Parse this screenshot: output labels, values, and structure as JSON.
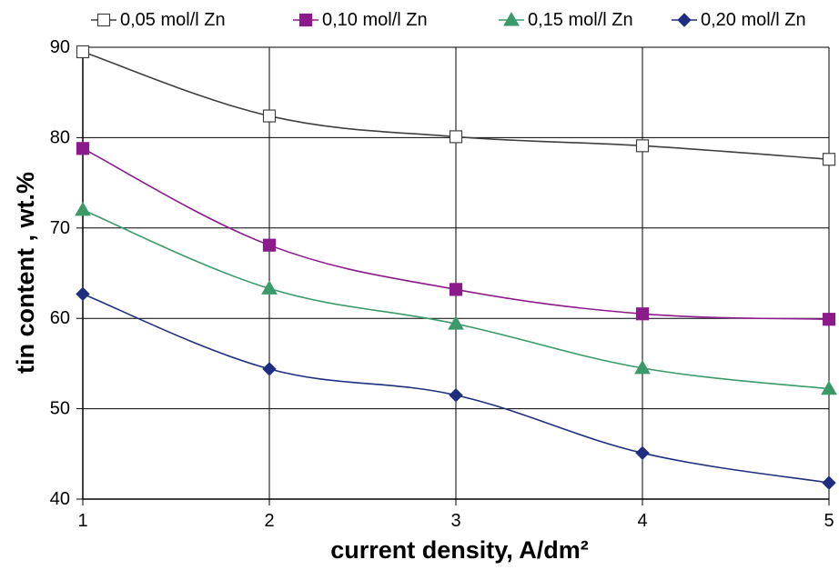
{
  "chart_data": {
    "type": "line",
    "title": "",
    "xlabel": "current density, A/dm²",
    "ylabel": "tin content , wt.%",
    "x": [
      1,
      2,
      3,
      4,
      5
    ],
    "xlim": [
      1,
      5
    ],
    "ylim": [
      40,
      90
    ],
    "xticks": [
      "1",
      "2",
      "3",
      "4",
      "5"
    ],
    "yticks": [
      "40",
      "50",
      "60",
      "70",
      "80",
      "90"
    ],
    "grid": true,
    "legend_position": "top",
    "series": [
      {
        "name": "0,05 mol/l Zn",
        "values": [
          89.5,
          82.4,
          80.1,
          79.1,
          77.6
        ],
        "color": "#3f3f3f",
        "marker": "square-open",
        "marker_color": "#ffffff"
      },
      {
        "name": "0,10 mol/l Zn",
        "values": [
          78.8,
          68.1,
          63.2,
          60.5,
          59.9
        ],
        "color": "#8b1a8b",
        "marker": "square",
        "marker_color": "#8b1a8b"
      },
      {
        "name": "0,15 mol/l Zn",
        "values": [
          72.0,
          63.3,
          59.4,
          54.5,
          52.2
        ],
        "color": "#3a9a6a",
        "marker": "triangle",
        "marker_color": "#3a9a6a"
      },
      {
        "name": "0,20 mol/l Zn",
        "values": [
          62.7,
          54.4,
          51.5,
          45.1,
          41.8
        ],
        "color": "#1f2f7f",
        "marker": "diamond",
        "marker_color": "#1f2f7f"
      }
    ]
  }
}
